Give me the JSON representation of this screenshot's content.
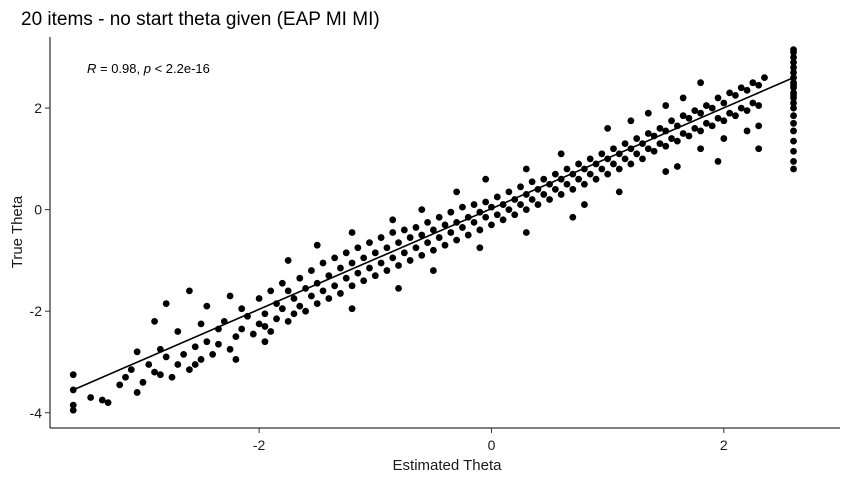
{
  "chart_data": {
    "type": "scatter",
    "title": "20 items - no start theta given (EAP MI MI)",
    "xlabel": "Estimated Theta",
    "ylabel": "True Theta",
    "xlim": [
      -3.8,
      3.0
    ],
    "ylim": [
      -4.3,
      3.4
    ],
    "x_ticks": [
      -2,
      0,
      2
    ],
    "x_tick_labels": [
      "-2",
      "0",
      "2"
    ],
    "y_ticks": [
      -4,
      -2,
      0,
      2
    ],
    "y_tick_labels": [
      "-4",
      "-2",
      "0",
      "2"
    ],
    "grid": false,
    "annotation": {
      "r_symbol": "R",
      "r_value": " = 0.98, ",
      "p_symbol": "p",
      "p_value": " < 2.2e-16"
    },
    "fit_line": {
      "x": [
        -3.6,
        2.6
      ],
      "y": [
        -3.55,
        2.6
      ]
    },
    "points": [
      [
        -3.6,
        -3.25
      ],
      [
        -3.6,
        -3.55
      ],
      [
        -3.6,
        -3.85
      ],
      [
        -3.6,
        -3.95
      ],
      [
        -3.45,
        -3.7
      ],
      [
        -3.35,
        -3.75
      ],
      [
        -3.3,
        -3.8
      ],
      [
        -3.2,
        -3.45
      ],
      [
        -3.15,
        -3.3
      ],
      [
        -3.1,
        -3.15
      ],
      [
        -3.05,
        -2.8
      ],
      [
        -3.05,
        -3.6
      ],
      [
        -2.95,
        -3.05
      ],
      [
        -2.9,
        -3.2
      ],
      [
        -2.85,
        -2.75
      ],
      [
        -2.85,
        -3.25
      ],
      [
        -2.8,
        -1.85
      ],
      [
        -2.8,
        -2.9
      ],
      [
        -2.75,
        -3.3
      ],
      [
        -2.7,
        -3.05
      ],
      [
        -2.7,
        -2.4
      ],
      [
        -2.65,
        -2.85
      ],
      [
        -2.6,
        -3.15
      ],
      [
        -2.55,
        -2.7
      ],
      [
        -2.55,
        -3.05
      ],
      [
        -2.5,
        -2.25
      ],
      [
        -2.5,
        -2.95
      ],
      [
        -2.45,
        -1.9
      ],
      [
        -2.45,
        -2.6
      ],
      [
        -2.4,
        -2.85
      ],
      [
        -2.35,
        -2.35
      ],
      [
        -2.35,
        -2.65
      ],
      [
        -2.3,
        -2.2
      ],
      [
        -2.25,
        -1.7
      ],
      [
        -2.25,
        -2.75
      ],
      [
        -2.2,
        -2.5
      ],
      [
        -2.15,
        -1.95
      ],
      [
        -2.15,
        -2.35
      ],
      [
        -2.1,
        -2.1
      ],
      [
        -2.05,
        -2.45
      ],
      [
        -2.0,
        -2.25
      ],
      [
        -2.0,
        -1.75
      ],
      [
        -1.95,
        -2.05
      ],
      [
        -1.95,
        -2.3
      ],
      [
        -1.9,
        -1.6
      ],
      [
        -1.9,
        -2.4
      ],
      [
        -1.85,
        -1.85
      ],
      [
        -1.85,
        -2.15
      ],
      [
        -1.8,
        -1.45
      ],
      [
        -1.8,
        -1.95
      ],
      [
        -1.75,
        -2.2
      ],
      [
        -1.75,
        -1.6
      ],
      [
        -1.7,
        -1.75
      ],
      [
        -1.7,
        -2.05
      ],
      [
        -1.65,
        -1.35
      ],
      [
        -1.65,
        -1.9
      ],
      [
        -1.6,
        -1.55
      ],
      [
        -1.6,
        -2.0
      ],
      [
        -1.55,
        -1.2
      ],
      [
        -1.55,
        -1.7
      ],
      [
        -1.5,
        -1.45
      ],
      [
        -1.5,
        -1.85
      ],
      [
        -1.45,
        -1.05
      ],
      [
        -1.45,
        -1.6
      ],
      [
        -1.4,
        -1.3
      ],
      [
        -1.4,
        -1.75
      ],
      [
        -1.35,
        -0.95
      ],
      [
        -1.35,
        -1.5
      ],
      [
        -1.3,
        -1.15
      ],
      [
        -1.3,
        -1.65
      ],
      [
        -1.25,
        -0.85
      ],
      [
        -1.25,
        -1.35
      ],
      [
        -1.2,
        -1.05
      ],
      [
        -1.2,
        -1.5
      ],
      [
        -1.15,
        -0.75
      ],
      [
        -1.15,
        -1.25
      ],
      [
        -1.1,
        -0.95
      ],
      [
        -1.1,
        -1.4
      ],
      [
        -1.05,
        -0.65
      ],
      [
        -1.05,
        -1.15
      ],
      [
        -1.0,
        -0.85
      ],
      [
        -1.0,
        -1.3
      ],
      [
        -0.95,
        -0.55
      ],
      [
        -0.95,
        -1.05
      ],
      [
        -0.9,
        -0.75
      ],
      [
        -0.9,
        -1.2
      ],
      [
        -0.85,
        -0.45
      ],
      [
        -0.85,
        -0.95
      ],
      [
        -0.8,
        -0.65
      ],
      [
        -0.8,
        -1.1
      ],
      [
        -0.75,
        -0.4
      ],
      [
        -0.75,
        -0.85
      ],
      [
        -0.7,
        -0.55
      ],
      [
        -0.7,
        -1.0
      ],
      [
        -0.65,
        -0.35
      ],
      [
        -0.65,
        -0.75
      ],
      [
        -0.6,
        -0.5
      ],
      [
        -0.6,
        -0.9
      ],
      [
        -0.55,
        -0.25
      ],
      [
        -0.55,
        -0.65
      ],
      [
        -0.5,
        -0.4
      ],
      [
        -0.5,
        -0.8
      ],
      [
        -0.45,
        -0.15
      ],
      [
        -0.45,
        -0.55
      ],
      [
        -0.4,
        -0.3
      ],
      [
        -0.4,
        -0.7
      ],
      [
        -0.35,
        -0.05
      ],
      [
        -0.35,
        -0.45
      ],
      [
        -0.3,
        -0.25
      ],
      [
        -0.3,
        -0.6
      ],
      [
        -0.25,
        0.05
      ],
      [
        -0.25,
        -0.35
      ],
      [
        -0.2,
        -0.15
      ],
      [
        -0.2,
        -0.5
      ],
      [
        -0.15,
        0.1
      ],
      [
        -0.15,
        -0.25
      ],
      [
        -0.1,
        -0.05
      ],
      [
        -0.1,
        -0.4
      ],
      [
        -0.05,
        0.15
      ],
      [
        -0.05,
        -0.15
      ],
      [
        0.0,
        0.05
      ],
      [
        0.0,
        -0.3
      ],
      [
        0.05,
        0.25
      ],
      [
        0.05,
        -0.1
      ],
      [
        0.1,
        0.1
      ],
      [
        0.1,
        -0.2
      ],
      [
        0.15,
        0.35
      ],
      [
        0.15,
        0.0
      ],
      [
        0.2,
        0.2
      ],
      [
        0.2,
        -0.1
      ],
      [
        0.25,
        0.45
      ],
      [
        0.25,
        0.1
      ],
      [
        0.3,
        0.3
      ],
      [
        0.3,
        0.0
      ],
      [
        0.35,
        0.55
      ],
      [
        0.35,
        0.2
      ],
      [
        0.4,
        0.4
      ],
      [
        0.4,
        0.1
      ],
      [
        0.45,
        0.6
      ],
      [
        0.45,
        0.3
      ],
      [
        0.5,
        0.5
      ],
      [
        0.5,
        0.2
      ],
      [
        0.55,
        0.7
      ],
      [
        0.55,
        0.4
      ],
      [
        0.6,
        0.6
      ],
      [
        0.6,
        0.3
      ],
      [
        0.65,
        0.8
      ],
      [
        0.65,
        0.5
      ],
      [
        0.7,
        0.7
      ],
      [
        0.7,
        0.4
      ],
      [
        0.75,
        0.9
      ],
      [
        0.75,
        0.6
      ],
      [
        0.8,
        0.8
      ],
      [
        0.8,
        0.5
      ],
      [
        0.85,
        1.0
      ],
      [
        0.85,
        0.7
      ],
      [
        0.9,
        0.9
      ],
      [
        0.9,
        0.6
      ],
      [
        0.95,
        1.1
      ],
      [
        0.95,
        0.8
      ],
      [
        1.0,
        1.0
      ],
      [
        1.0,
        0.7
      ],
      [
        1.05,
        1.2
      ],
      [
        1.05,
        0.9
      ],
      [
        1.1,
        1.1
      ],
      [
        1.1,
        0.8
      ],
      [
        1.15,
        1.3
      ],
      [
        1.15,
        1.0
      ],
      [
        1.2,
        1.2
      ],
      [
        1.2,
        0.9
      ],
      [
        1.25,
        1.4
      ],
      [
        1.25,
        1.1
      ],
      [
        1.3,
        1.3
      ],
      [
        1.3,
        1.0
      ],
      [
        1.35,
        1.5
      ],
      [
        1.35,
        1.2
      ],
      [
        1.4,
        1.45
      ],
      [
        1.4,
        1.15
      ],
      [
        1.45,
        1.6
      ],
      [
        1.45,
        1.3
      ],
      [
        1.5,
        1.55
      ],
      [
        1.5,
        1.25
      ],
      [
        1.55,
        1.75
      ],
      [
        1.55,
        1.4
      ],
      [
        1.6,
        1.65
      ],
      [
        1.6,
        1.35
      ],
      [
        1.65,
        1.85
      ],
      [
        1.65,
        1.5
      ],
      [
        1.7,
        1.8
      ],
      [
        1.7,
        1.45
      ],
      [
        1.75,
        1.95
      ],
      [
        1.75,
        1.6
      ],
      [
        1.8,
        1.9
      ],
      [
        1.8,
        1.55
      ],
      [
        1.85,
        2.05
      ],
      [
        1.85,
        1.7
      ],
      [
        1.9,
        2.0
      ],
      [
        1.9,
        1.65
      ],
      [
        1.95,
        2.2
      ],
      [
        1.95,
        1.8
      ],
      [
        2.0,
        2.1
      ],
      [
        2.0,
        1.75
      ],
      [
        2.05,
        2.3
      ],
      [
        2.05,
        1.9
      ],
      [
        2.1,
        2.25
      ],
      [
        2.1,
        1.85
      ],
      [
        2.15,
        2.4
      ],
      [
        2.15,
        2.0
      ],
      [
        2.2,
        2.35
      ],
      [
        2.2,
        1.95
      ],
      [
        2.25,
        2.5
      ],
      [
        2.25,
        2.1
      ],
      [
        2.3,
        2.45
      ],
      [
        2.3,
        2.05
      ],
      [
        2.35,
        2.6
      ],
      [
        1.0,
        1.6
      ],
      [
        1.2,
        1.75
      ],
      [
        1.35,
        1.9
      ],
      [
        1.5,
        2.05
      ],
      [
        1.65,
        2.2
      ],
      [
        1.8,
        2.5
      ],
      [
        0.6,
        1.1
      ],
      [
        0.3,
        0.8
      ],
      [
        -0.05,
        0.6
      ],
      [
        -0.3,
        0.35
      ],
      [
        -0.6,
        0.0
      ],
      [
        -0.85,
        -0.2
      ],
      [
        -1.2,
        -0.45
      ],
      [
        -1.5,
        -0.7
      ],
      [
        -1.75,
        -1.0
      ],
      [
        -0.5,
        -1.2
      ],
      [
        -0.1,
        -0.75
      ],
      [
        0.3,
        -0.45
      ],
      [
        0.7,
        -0.15
      ],
      [
        1.1,
        0.35
      ],
      [
        1.5,
        0.75
      ],
      [
        1.95,
        0.95
      ],
      [
        -1.2,
        -1.95
      ],
      [
        -0.8,
        -1.55
      ],
      [
        -2.6,
        -1.6
      ],
      [
        -2.9,
        -2.2
      ],
      [
        -3.0,
        -3.4
      ],
      [
        -2.2,
        -2.95
      ],
      [
        -1.95,
        -2.6
      ],
      [
        0.8,
        0.1
      ],
      [
        1.6,
        0.85
      ],
      [
        1.8,
        1.2
      ],
      [
        2.0,
        1.4
      ],
      [
        2.2,
        1.55
      ],
      [
        2.3,
        1.2
      ],
      [
        2.3,
        1.65
      ],
      [
        2.6,
        0.8
      ],
      [
        2.6,
        0.95
      ],
      [
        2.6,
        1.15
      ],
      [
        2.6,
        1.35
      ],
      [
        2.6,
        1.55
      ],
      [
        2.6,
        1.7
      ],
      [
        2.6,
        1.85
      ],
      [
        2.6,
        2.0
      ],
      [
        2.6,
        2.1
      ],
      [
        2.6,
        2.2
      ],
      [
        2.6,
        2.3
      ],
      [
        2.6,
        2.4
      ],
      [
        2.6,
        2.5
      ],
      [
        2.6,
        2.6
      ],
      [
        2.6,
        2.7
      ],
      [
        2.6,
        2.8
      ],
      [
        2.6,
        2.9
      ],
      [
        2.6,
        3.0
      ],
      [
        2.6,
        3.1
      ],
      [
        2.6,
        3.15
      ],
      [
        2.6,
        2.45
      ],
      [
        2.6,
        2.25
      ]
    ]
  }
}
